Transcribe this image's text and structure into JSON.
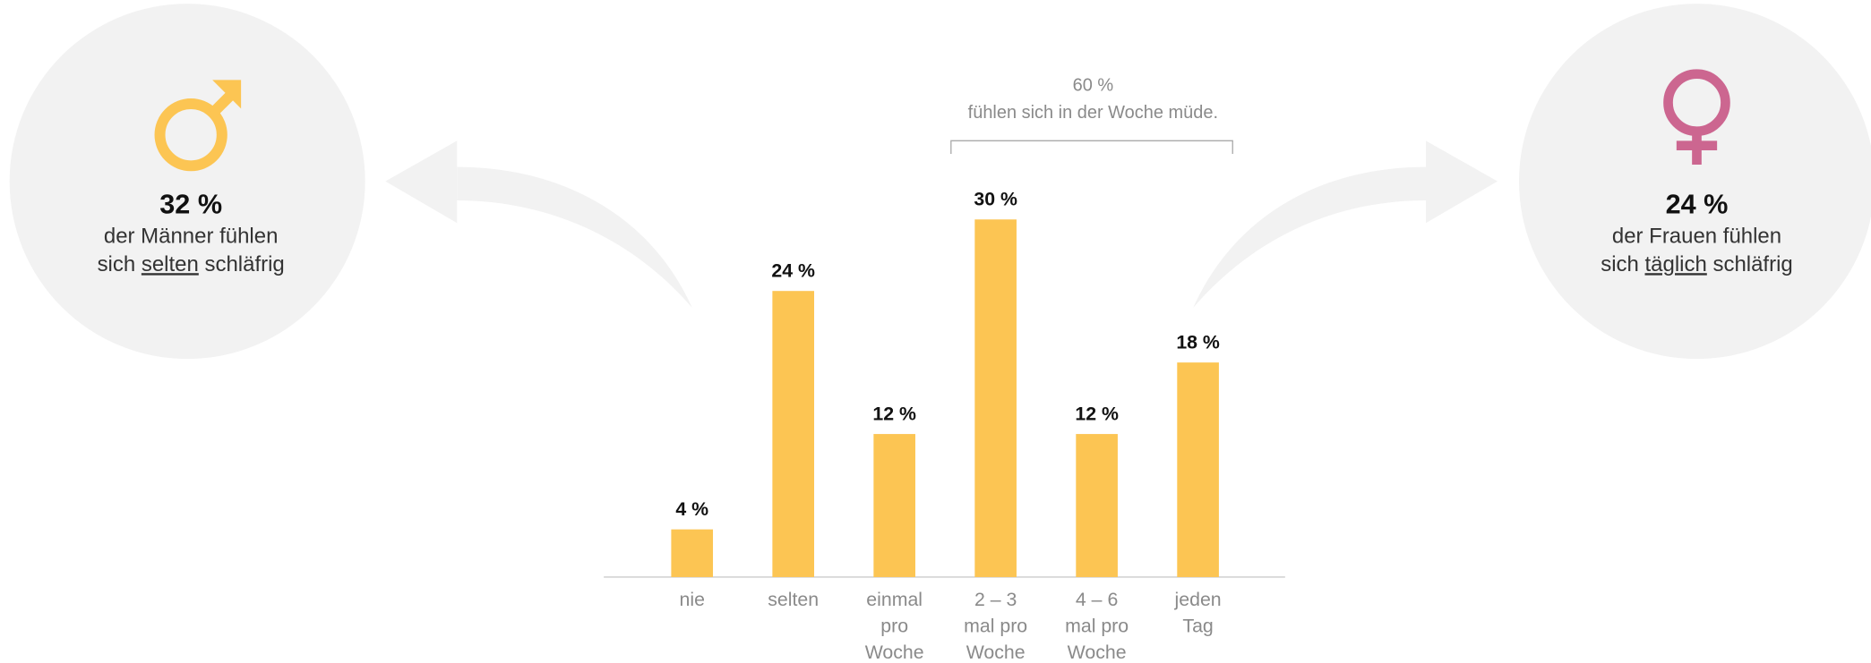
{
  "chart_data": {
    "type": "bar",
    "categories": [
      [
        "nie"
      ],
      [
        "selten"
      ],
      [
        "einmal",
        "pro",
        "Woche"
      ],
      [
        "2 – 3",
        "mal pro",
        "Woche"
      ],
      [
        "4 – 6",
        "mal pro",
        "Woche"
      ],
      [
        "jeden",
        "Tag"
      ]
    ],
    "values": [
      4,
      24,
      12,
      30,
      12,
      18
    ],
    "value_labels": [
      "4 %",
      "24 %",
      "12 %",
      "30 %",
      "12 %",
      "18 %"
    ],
    "color": "#fcc553",
    "ylim": [
      0,
      30
    ],
    "annotation": {
      "value": "60 %",
      "text": "fühlen sich in der Woche müde."
    }
  },
  "left_panel": {
    "value": "32 %",
    "line1": "der Männer fühlen",
    "line2": [
      "sich ",
      "selten",
      " schläfrig"
    ]
  },
  "right_panel": {
    "value": "24 %",
    "line1": "der Frauen fühlen",
    "line2": [
      "sich ",
      "täglich",
      " schläfrig"
    ]
  }
}
